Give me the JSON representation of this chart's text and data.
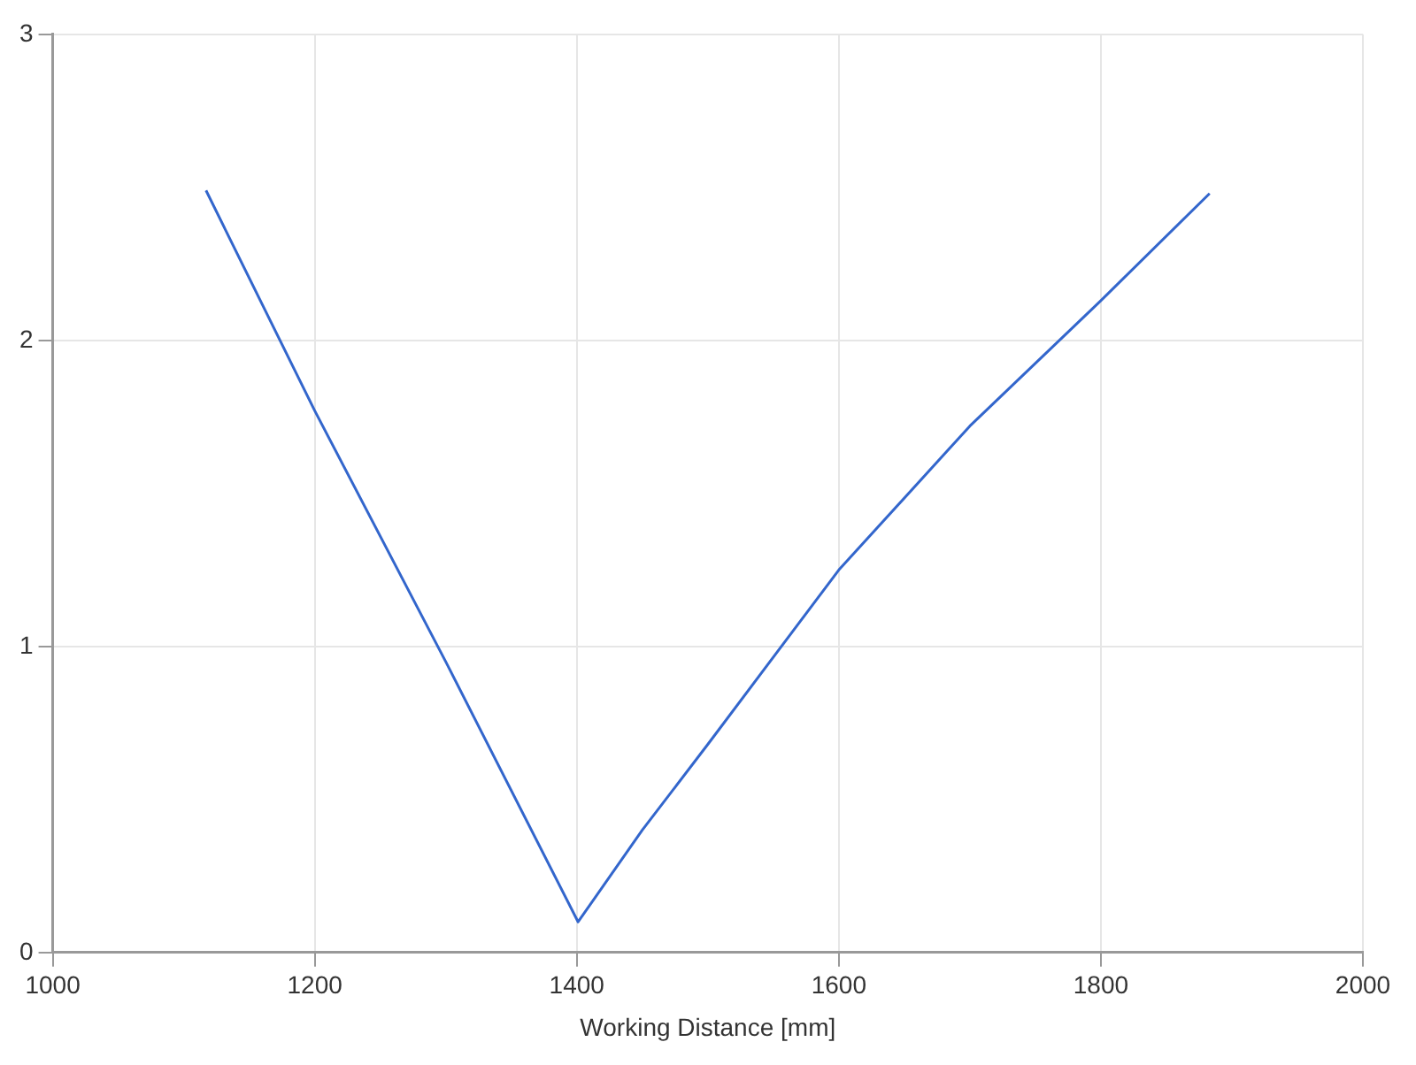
{
  "chart_data": {
    "type": "line",
    "xlabel": "Working Distance [mm]",
    "x": [
      1117,
      1200,
      1300,
      1401,
      1450,
      1500,
      1600,
      1700,
      1800,
      1883
    ],
    "series": [
      {
        "color": "#3366cc",
        "values": [
          2.49,
          1.77,
          0.95,
          0.1,
          0.4,
          0.68,
          1.25,
          1.72,
          2.13,
          2.48
        ]
      }
    ],
    "xlim": [
      1000,
      2000
    ],
    "xticks": [
      1000,
      1200,
      1400,
      1600,
      1800,
      2000
    ],
    "ylim": [
      0,
      3
    ],
    "yticks": [
      0,
      1,
      2,
      3
    ],
    "grid": true,
    "legend": false,
    "marker": "none",
    "line_style": "solid"
  }
}
